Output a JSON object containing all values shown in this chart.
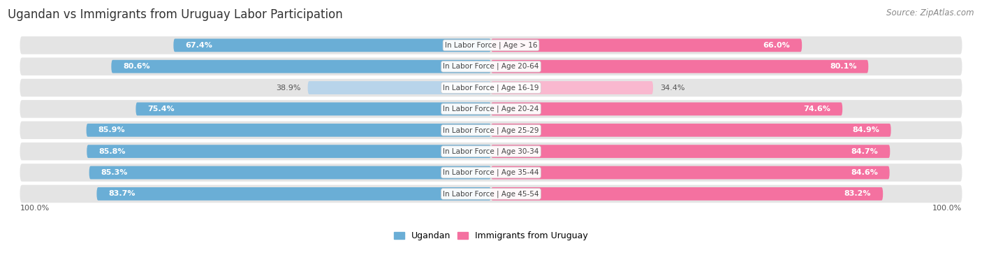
{
  "title": "Ugandan vs Immigrants from Uruguay Labor Participation",
  "source": "Source: ZipAtlas.com",
  "categories": [
    "In Labor Force | Age > 16",
    "In Labor Force | Age 20-64",
    "In Labor Force | Age 16-19",
    "In Labor Force | Age 20-24",
    "In Labor Force | Age 25-29",
    "In Labor Force | Age 30-34",
    "In Labor Force | Age 35-44",
    "In Labor Force | Age 45-54"
  ],
  "ugandan_values": [
    67.4,
    80.6,
    38.9,
    75.4,
    85.9,
    85.8,
    85.3,
    83.7
  ],
  "uruguay_values": [
    66.0,
    80.1,
    34.4,
    74.6,
    84.9,
    84.7,
    84.6,
    83.2
  ],
  "ugandan_color": "#6aaed6",
  "ugandan_color_light": "#b8d4ea",
  "uruguay_color": "#f471a0",
  "uruguay_color_light": "#f9b8cf",
  "row_bg_color": "#e8e8e8",
  "row_bg_color2": "#f0f0f0",
  "max_value": 100.0,
  "legend_ugandan": "Ugandan",
  "legend_uruguay": "Immigrants from Uruguay",
  "title_fontsize": 12,
  "source_fontsize": 8.5,
  "bar_label_fontsize": 8,
  "category_fontsize": 7.5,
  "legend_fontsize": 9,
  "footer_label": "100.0%"
}
